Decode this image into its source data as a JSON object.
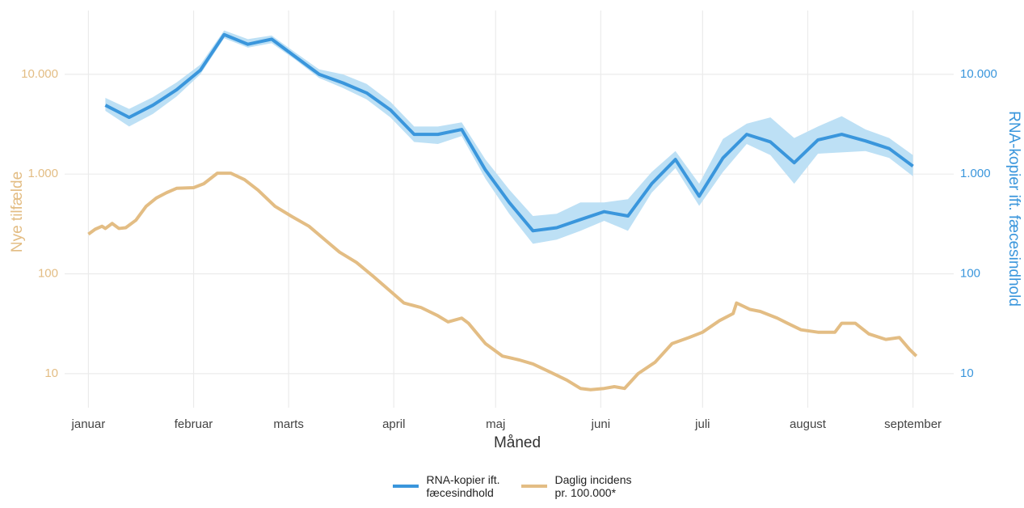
{
  "chart_data": {
    "type": "line",
    "x_label": "Måned",
    "y_label": "Nye tilfælde",
    "y2_label": "RNA-kopier ift. fæcesindhold",
    "log_y": true,
    "grid": true,
    "legend": "bottom",
    "xlim": [
      -6,
      256
    ],
    "xticks": [
      {
        "value": 1,
        "label": "januar"
      },
      {
        "value": 32,
        "label": "februar"
      },
      {
        "value": 60,
        "label": "marts"
      },
      {
        "value": 91,
        "label": "april"
      },
      {
        "value": 121,
        "label": "maj"
      },
      {
        "value": 152,
        "label": "juni"
      },
      {
        "value": 182,
        "label": "juli"
      },
      {
        "value": 213,
        "label": "august"
      },
      {
        "value": 244,
        "label": "september"
      }
    ],
    "ylim": [
      5,
      30000
    ],
    "yticks": [
      10,
      100,
      {
        "value": 1000,
        "label": "1.000"
      },
      {
        "value": 10000,
        "label": "10.000"
      }
    ],
    "y2lim": [
      5,
      30000
    ],
    "y2ticks": [
      10,
      100,
      {
        "value": 1000,
        "label": "1.000"
      },
      {
        "value": 10000,
        "label": "10.000"
      }
    ],
    "y_color": "#e3bd84",
    "y2_color": "#3a96dc",
    "series": [
      {
        "name": "RNA-kopier ift.\nfæcesindhold",
        "color": "#3a96dc",
        "band_color": "#bde0f5",
        "axis": "y2",
        "x": [
          6,
          13,
          20,
          27,
          34,
          41,
          48,
          55,
          62,
          69,
          76,
          83,
          90,
          97,
          104,
          111,
          118,
          125,
          132,
          139,
          146,
          153,
          160,
          167,
          174,
          181,
          188,
          195,
          202,
          209,
          216,
          223,
          230,
          237,
          244
        ],
        "values": [
          4900,
          3700,
          4900,
          7000,
          11000,
          25000,
          20000,
          22500,
          15000,
          10000,
          8200,
          6500,
          4400,
          2500,
          2500,
          2800,
          1100,
          520,
          270,
          290,
          350,
          420,
          380,
          800,
          1400,
          600,
          1450,
          2500,
          2100,
          1300,
          2200,
          2500,
          2150,
          1800,
          1200
        ],
        "lower": [
          4300,
          3000,
          4000,
          6000,
          10000,
          23000,
          18500,
          20500,
          14000,
          9200,
          7300,
          5600,
          3700,
          2100,
          2000,
          2400,
          900,
          400,
          200,
          220,
          270,
          340,
          270,
          650,
          1150,
          480,
          1050,
          2000,
          1550,
          800,
          1600,
          1650,
          1700,
          1450,
          950
        ],
        "upper": [
          5800,
          4500,
          5900,
          8300,
          12500,
          27500,
          22500,
          24500,
          16500,
          11200,
          10000,
          8000,
          5300,
          3000,
          3000,
          3300,
          1400,
          700,
          380,
          400,
          520,
          520,
          560,
          1050,
          1700,
          800,
          2250,
          3200,
          3700,
          2300,
          3000,
          3800,
          2800,
          2300,
          1550
        ]
      },
      {
        "name": "Daglig incidens\npr. 100.000*",
        "color": "#e3bd84",
        "axis": "y",
        "x": [
          1,
          3,
          5,
          6,
          8,
          10,
          12,
          15,
          18,
          21,
          24,
          27,
          32,
          35,
          39,
          43,
          47,
          51,
          56,
          61,
          66,
          71,
          75,
          80,
          85,
          90,
          94,
          99,
          104,
          107,
          111,
          113,
          118,
          123,
          128,
          132,
          137,
          142,
          146,
          149,
          153,
          156,
          159,
          163,
          168,
          173,
          178,
          182,
          187,
          191,
          192,
          196,
          199,
          204,
          207,
          211,
          216,
          221,
          223,
          227,
          231,
          236,
          240,
          243,
          245
        ],
        "values": [
          250,
          280,
          300,
          285,
          320,
          285,
          290,
          345,
          475,
          575,
          650,
          720,
          730,
          800,
          1020,
          1020,
          880,
          690,
          475,
          375,
          300,
          215,
          165,
          130,
          94,
          67,
          51,
          46,
          38,
          33,
          36,
          32,
          20,
          15,
          13.7,
          12.5,
          10.4,
          8.6,
          7.1,
          6.9,
          7.1,
          7.4,
          7.1,
          10,
          13,
          20,
          23,
          26,
          34,
          40,
          51,
          44,
          42,
          36,
          32,
          27.5,
          26,
          26,
          32,
          32,
          25,
          22,
          23,
          17.5,
          15
        ]
      }
    ]
  }
}
